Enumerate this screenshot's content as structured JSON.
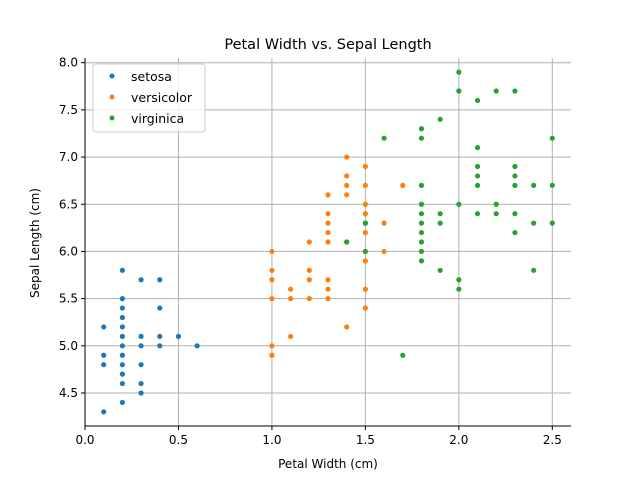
{
  "chart_data": {
    "type": "scatter",
    "title": "Petal Width vs. Sepal Length",
    "xlabel": "Petal Width (cm)",
    "ylabel": "Sepal Length (cm)",
    "xlim": [
      0.0,
      2.6
    ],
    "ylim": [
      4.15,
      8.05
    ],
    "xticks": [
      0.0,
      0.5,
      1.0,
      1.5,
      2.0,
      2.5
    ],
    "xtick_labels": [
      "0.0",
      "0.5",
      "1.0",
      "1.5",
      "2.0",
      "2.5"
    ],
    "yticks": [
      4.5,
      5.0,
      5.5,
      6.0,
      6.5,
      7.0,
      7.5,
      8.0
    ],
    "ytick_labels": [
      "4.5",
      "5.0",
      "5.5",
      "6.0",
      "6.5",
      "7.0",
      "7.5",
      "8.0"
    ],
    "grid": true,
    "legend_position": "top-left",
    "series": [
      {
        "name": "setosa",
        "color": "#1f77b4",
        "points": [
          [
            0.1,
            4.3
          ],
          [
            0.1,
            4.8
          ],
          [
            0.1,
            4.9
          ],
          [
            0.1,
            5.2
          ],
          [
            0.2,
            4.4
          ],
          [
            0.2,
            4.6
          ],
          [
            0.2,
            4.7
          ],
          [
            0.2,
            4.8
          ],
          [
            0.2,
            4.9
          ],
          [
            0.2,
            5.0
          ],
          [
            0.2,
            5.1
          ],
          [
            0.2,
            5.2
          ],
          [
            0.2,
            5.3
          ],
          [
            0.2,
            5.4
          ],
          [
            0.2,
            5.5
          ],
          [
            0.2,
            5.8
          ],
          [
            0.3,
            4.5
          ],
          [
            0.3,
            4.6
          ],
          [
            0.3,
            4.8
          ],
          [
            0.3,
            5.0
          ],
          [
            0.3,
            5.1
          ],
          [
            0.3,
            5.7
          ],
          [
            0.4,
            5.0
          ],
          [
            0.4,
            5.1
          ],
          [
            0.4,
            5.4
          ],
          [
            0.4,
            5.7
          ],
          [
            0.5,
            5.1
          ],
          [
            0.6,
            5.0
          ]
        ]
      },
      {
        "name": "versicolor",
        "color": "#ff7f0e",
        "points": [
          [
            1.0,
            4.9
          ],
          [
            1.0,
            5.0
          ],
          [
            1.0,
            5.5
          ],
          [
            1.0,
            5.7
          ],
          [
            1.0,
            5.8
          ],
          [
            1.0,
            6.0
          ],
          [
            1.1,
            5.1
          ],
          [
            1.1,
            5.5
          ],
          [
            1.1,
            5.6
          ],
          [
            1.2,
            5.5
          ],
          [
            1.2,
            5.7
          ],
          [
            1.2,
            5.8
          ],
          [
            1.2,
            6.1
          ],
          [
            1.3,
            5.5
          ],
          [
            1.3,
            5.6
          ],
          [
            1.3,
            5.7
          ],
          [
            1.3,
            6.1
          ],
          [
            1.3,
            6.2
          ],
          [
            1.3,
            6.3
          ],
          [
            1.3,
            6.4
          ],
          [
            1.3,
            6.6
          ],
          [
            1.4,
            5.2
          ],
          [
            1.4,
            6.1
          ],
          [
            1.4,
            6.6
          ],
          [
            1.4,
            6.7
          ],
          [
            1.4,
            6.8
          ],
          [
            1.4,
            7.0
          ],
          [
            1.5,
            5.4
          ],
          [
            1.5,
            5.6
          ],
          [
            1.5,
            5.9
          ],
          [
            1.5,
            6.0
          ],
          [
            1.5,
            6.2
          ],
          [
            1.5,
            6.3
          ],
          [
            1.5,
            6.4
          ],
          [
            1.5,
            6.5
          ],
          [
            1.5,
            6.7
          ],
          [
            1.5,
            6.9
          ],
          [
            1.6,
            6.0
          ],
          [
            1.6,
            6.3
          ],
          [
            1.7,
            6.7
          ]
        ]
      },
      {
        "name": "virginica",
        "color": "#2ca02c",
        "points": [
          [
            1.4,
            6.1
          ],
          [
            1.5,
            6.0
          ],
          [
            1.5,
            6.3
          ],
          [
            1.6,
            7.2
          ],
          [
            1.7,
            4.9
          ],
          [
            1.8,
            5.9
          ],
          [
            1.8,
            6.0
          ],
          [
            1.8,
            6.1
          ],
          [
            1.8,
            6.2
          ],
          [
            1.8,
            6.3
          ],
          [
            1.8,
            6.4
          ],
          [
            1.8,
            6.5
          ],
          [
            1.8,
            6.7
          ],
          [
            1.8,
            7.2
          ],
          [
            1.8,
            7.3
          ],
          [
            1.9,
            5.8
          ],
          [
            1.9,
            6.3
          ],
          [
            1.9,
            6.4
          ],
          [
            1.9,
            7.4
          ],
          [
            2.0,
            5.6
          ],
          [
            2.0,
            5.7
          ],
          [
            2.0,
            6.5
          ],
          [
            2.0,
            7.7
          ],
          [
            2.0,
            7.9
          ],
          [
            2.1,
            6.4
          ],
          [
            2.1,
            6.7
          ],
          [
            2.1,
            6.8
          ],
          [
            2.1,
            6.9
          ],
          [
            2.1,
            7.1
          ],
          [
            2.1,
            7.6
          ],
          [
            2.2,
            6.4
          ],
          [
            2.2,
            6.5
          ],
          [
            2.2,
            7.7
          ],
          [
            2.3,
            6.2
          ],
          [
            2.3,
            6.4
          ],
          [
            2.3,
            6.7
          ],
          [
            2.3,
            6.8
          ],
          [
            2.3,
            6.9
          ],
          [
            2.3,
            7.7
          ],
          [
            2.4,
            5.8
          ],
          [
            2.4,
            6.3
          ],
          [
            2.4,
            6.7
          ],
          [
            2.5,
            6.3
          ],
          [
            2.5,
            6.7
          ],
          [
            2.5,
            7.2
          ]
        ]
      }
    ]
  }
}
